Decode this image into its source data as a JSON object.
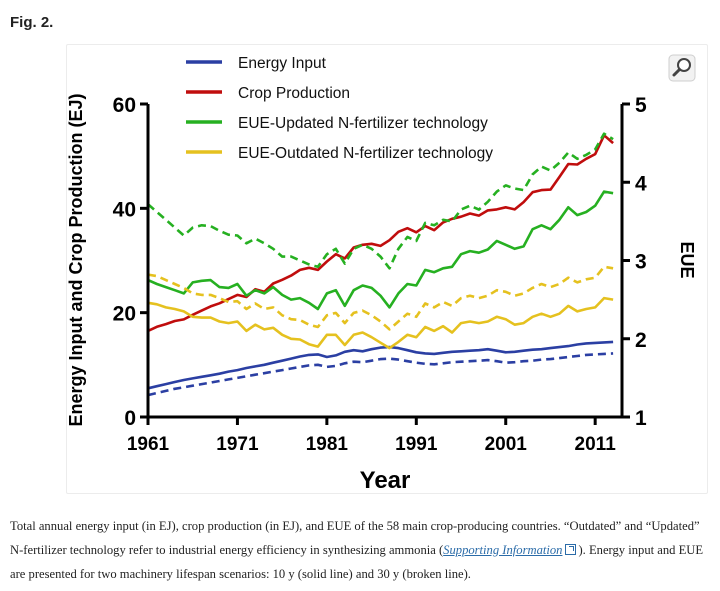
{
  "figure": {
    "label": "Fig. 2.",
    "caption": {
      "part1": "Total annual energy input (in EJ), crop production (in EJ), and EUE of the 58 main crop-producing countries. “Outdated” and “Updated” N-fertilizer technology refer to industrial energy efficiency in synthesizing ammonia (",
      "link": "Supporting Information",
      "part2": "). Energy input and EUE are presented for two machinery lifespan scenarios: 10 y (solid line) and 30 y (broken line)."
    },
    "zoom_icon": "magnifier-icon"
  },
  "chart_data": {
    "type": "line",
    "xlabel": "Year",
    "ylabel": "Energy Input and Crop Production (EJ)",
    "y2label": "EUE",
    "xlim": [
      1961,
      2014
    ],
    "ylim": [
      0,
      60
    ],
    "y2lim": [
      1,
      5
    ],
    "xticks": [
      1961,
      1971,
      1981,
      1991,
      2001,
      2011
    ],
    "yticks": [
      0,
      20,
      40,
      60
    ],
    "y2ticks": [
      1,
      2,
      3,
      4,
      5
    ],
    "legend": "top-left",
    "grid": false,
    "legend_entries": [
      {
        "name": "Energy Input",
        "color": "#2b3fa3"
      },
      {
        "name": "Crop Production",
        "color": "#c00d0d"
      },
      {
        "name": "EUE-Updated N-fertilizer technology",
        "color": "#26b021"
      },
      {
        "name": "EUE-Outdated N-fertilizer technology",
        "color": "#e5c11f"
      }
    ],
    "x": [
      1961,
      1962,
      1963,
      1964,
      1965,
      1966,
      1967,
      1968,
      1969,
      1970,
      1971,
      1972,
      1973,
      1974,
      1975,
      1976,
      1977,
      1978,
      1979,
      1980,
      1981,
      1982,
      1983,
      1984,
      1985,
      1986,
      1987,
      1988,
      1989,
      1990,
      1991,
      1992,
      1993,
      1994,
      1995,
      1996,
      1997,
      1998,
      1999,
      2000,
      2001,
      2002,
      2003,
      2004,
      2005,
      2006,
      2007,
      2008,
      2009,
      2010,
      2011,
      2012,
      2013
    ],
    "series": [
      {
        "name": "Energy Input",
        "lifespan": "10 y",
        "axis": "left",
        "color": "#2b3fa3",
        "dash": false,
        "values": [
          5.5,
          5.9,
          6.3,
          6.7,
          7.1,
          7.4,
          7.7,
          8.0,
          8.3,
          8.7,
          9.0,
          9.4,
          9.7,
          10.0,
          10.4,
          10.8,
          11.2,
          11.6,
          11.9,
          12.0,
          11.5,
          11.8,
          12.5,
          12.8,
          12.6,
          13.0,
          13.3,
          13.4,
          13.2,
          12.8,
          12.4,
          12.2,
          12.1,
          12.3,
          12.5,
          12.6,
          12.7,
          12.8,
          13.0,
          12.7,
          12.4,
          12.5,
          12.7,
          12.9,
          13.0,
          13.2,
          13.4,
          13.6,
          13.9,
          14.1,
          14.2,
          14.3,
          14.4
        ]
      },
      {
        "name": "Energy Input",
        "lifespan": "30 y",
        "axis": "left",
        "color": "#2b3fa3",
        "dash": true,
        "values": [
          4.2,
          4.6,
          5.0,
          5.4,
          5.7,
          6.0,
          6.3,
          6.6,
          6.9,
          7.2,
          7.5,
          7.8,
          8.1,
          8.4,
          8.7,
          9.0,
          9.3,
          9.6,
          9.9,
          10.0,
          9.6,
          9.8,
          10.3,
          10.6,
          10.5,
          10.8,
          11.1,
          11.2,
          11.0,
          10.7,
          10.4,
          10.2,
          10.1,
          10.3,
          10.5,
          10.6,
          10.7,
          10.8,
          10.9,
          10.7,
          10.4,
          10.5,
          10.7,
          10.8,
          11.0,
          11.1,
          11.3,
          11.5,
          11.7,
          11.9,
          12.0,
          12.1,
          12.2
        ]
      },
      {
        "name": "Crop Production",
        "lifespan": "",
        "axis": "left",
        "color": "#c00d0d",
        "dash": false,
        "values": [
          16.5,
          17.3,
          17.8,
          18.4,
          18.7,
          19.6,
          20.4,
          21.2,
          21.8,
          22.6,
          23.4,
          23.0,
          24.5,
          24.0,
          25.6,
          26.3,
          27.1,
          28.2,
          28.6,
          28.2,
          29.8,
          31.2,
          30.4,
          32.5,
          33.0,
          33.2,
          32.8,
          33.9,
          35.5,
          36.2,
          35.4,
          36.6,
          35.8,
          37.3,
          38.0,
          38.4,
          39.0,
          38.6,
          39.6,
          39.8,
          40.2,
          39.8,
          41.2,
          43.1,
          43.5,
          43.6,
          46.0,
          48.5,
          48.4,
          49.5,
          50.4,
          54.0,
          52.5
        ]
      },
      {
        "name": "EUE-Updated N-fertilizer technology",
        "lifespan": "10 y",
        "axis": "right",
        "color": "#26b021",
        "dash": false,
        "values": [
          2.75,
          2.7,
          2.66,
          2.62,
          2.58,
          2.72,
          2.74,
          2.75,
          2.66,
          2.65,
          2.7,
          2.55,
          2.62,
          2.58,
          2.66,
          2.56,
          2.5,
          2.52,
          2.46,
          2.38,
          2.58,
          2.62,
          2.42,
          2.62,
          2.68,
          2.65,
          2.55,
          2.4,
          2.58,
          2.7,
          2.68,
          2.88,
          2.85,
          2.9,
          2.92,
          3.08,
          3.12,
          3.1,
          3.14,
          3.25,
          3.2,
          3.15,
          3.18,
          3.4,
          3.45,
          3.4,
          3.52,
          3.68,
          3.58,
          3.62,
          3.7,
          3.88,
          3.86
        ]
      },
      {
        "name": "EUE-Updated N-fertilizer technology",
        "lifespan": "30 y",
        "axis": "right",
        "color": "#26b021",
        "dash": true,
        "values": [
          3.72,
          3.62,
          3.52,
          3.42,
          3.32,
          3.42,
          3.45,
          3.44,
          3.38,
          3.33,
          3.32,
          3.22,
          3.28,
          3.22,
          3.15,
          3.05,
          3.05,
          3.0,
          2.95,
          2.92,
          3.08,
          3.15,
          2.96,
          3.15,
          3.2,
          3.15,
          3.05,
          2.9,
          3.15,
          3.3,
          3.25,
          3.48,
          3.45,
          3.52,
          3.5,
          3.65,
          3.7,
          3.65,
          3.75,
          3.88,
          3.96,
          3.92,
          3.9,
          4.1,
          4.2,
          4.15,
          4.25,
          4.38,
          4.3,
          4.35,
          4.42,
          4.62,
          4.55
        ]
      },
      {
        "name": "EUE-Outdated N-fertilizer technology",
        "lifespan": "10 y",
        "axis": "right",
        "color": "#e5c11f",
        "dash": false,
        "values": [
          2.46,
          2.44,
          2.4,
          2.38,
          2.35,
          2.28,
          2.27,
          2.27,
          2.22,
          2.2,
          2.22,
          2.1,
          2.18,
          2.12,
          2.14,
          2.05,
          2.0,
          1.99,
          1.93,
          1.9,
          2.05,
          2.05,
          1.92,
          2.05,
          2.08,
          2.02,
          1.95,
          1.88,
          1.96,
          2.05,
          2.02,
          2.15,
          2.1,
          2.16,
          2.08,
          2.2,
          2.22,
          2.2,
          2.22,
          2.28,
          2.25,
          2.18,
          2.2,
          2.28,
          2.32,
          2.28,
          2.32,
          2.42,
          2.35,
          2.38,
          2.4,
          2.52,
          2.5
        ]
      },
      {
        "name": "EUE-Outdated N-fertilizer technology",
        "lifespan": "30 y",
        "axis": "right",
        "color": "#e5c11f",
        "dash": true,
        "values": [
          2.82,
          2.8,
          2.75,
          2.7,
          2.65,
          2.58,
          2.56,
          2.56,
          2.52,
          2.47,
          2.48,
          2.38,
          2.45,
          2.38,
          2.4,
          2.3,
          2.25,
          2.24,
          2.18,
          2.15,
          2.3,
          2.33,
          2.2,
          2.33,
          2.36,
          2.3,
          2.22,
          2.12,
          2.22,
          2.32,
          2.28,
          2.45,
          2.4,
          2.47,
          2.42,
          2.52,
          2.55,
          2.52,
          2.55,
          2.62,
          2.6,
          2.55,
          2.58,
          2.65,
          2.7,
          2.66,
          2.7,
          2.78,
          2.72,
          2.76,
          2.78,
          2.92,
          2.9
        ]
      }
    ]
  }
}
